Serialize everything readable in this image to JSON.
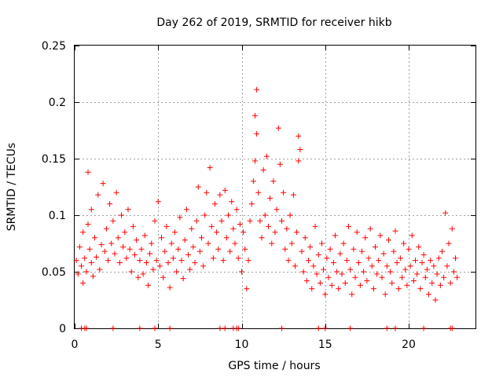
{
  "chart_data": {
    "type": "scatter",
    "title": "Day 262 of 2019, SRMTID for receiver hikb",
    "xlabel": "GPS time / hours",
    "ylabel": "SRMTID / TECUs",
    "xlim": [
      0,
      24
    ],
    "ylim": [
      0,
      0.25
    ],
    "xticks": [
      0,
      5,
      10,
      15,
      20
    ],
    "xtick_labels": [
      "0",
      "5",
      "10",
      "15",
      "20"
    ],
    "yticks": [
      0,
      0.05,
      0.1,
      0.15,
      0.2,
      0.25
    ],
    "ytick_labels": [
      "0",
      "0.05",
      "0.1",
      "0.15",
      "0.2",
      "0.25"
    ],
    "grid": true,
    "marker": "+",
    "color": "#ff0000",
    "series": [
      {
        "points": [
          [
            0.1,
            0.06
          ],
          [
            0.2,
            0.048
          ],
          [
            0.3,
            0.072
          ],
          [
            0.4,
            0.055
          ],
          [
            0.5,
            0.04
          ],
          [
            0.5,
            0.085
          ],
          [
            0.6,
            0.062
          ],
          [
            0.7,
            0.05
          ],
          [
            0.8,
            0.092
          ],
          [
            0.8,
            0.138
          ],
          [
            0.9,
            0.07
          ],
          [
            1.0,
            0.058
          ],
          [
            1.0,
            0.105
          ],
          [
            1.1,
            0.046
          ],
          [
            1.2,
            0.08
          ],
          [
            1.3,
            0.063
          ],
          [
            1.4,
            0.118
          ],
          [
            1.5,
            0.052
          ],
          [
            1.6,
            0.074
          ],
          [
            1.7,
            0.128
          ],
          [
            1.8,
            0.068
          ],
          [
            1.9,
            0.088
          ],
          [
            2.0,
            0.06
          ],
          [
            2.1,
            0.11
          ],
          [
            2.2,
            0.075
          ],
          [
            2.3,
            0.095
          ],
          [
            2.4,
            0.066
          ],
          [
            2.5,
            0.12
          ],
          [
            2.6,
            0.08
          ],
          [
            2.7,
            0.058
          ],
          [
            2.8,
            0.1
          ],
          [
            2.9,
            0.072
          ],
          [
            3.0,
            0.085
          ],
          [
            3.1,
            0.062
          ],
          [
            3.2,
            0.105
          ],
          [
            3.3,
            0.07
          ],
          [
            3.4,
            0.05
          ],
          [
            3.5,
            0.09
          ],
          [
            3.6,
            0.065
          ],
          [
            3.7,
            0.078
          ],
          [
            3.8,
            0.045
          ],
          [
            3.9,
            0.06
          ],
          [
            4.0,
            0.07
          ],
          [
            4.1,
            0.048
          ],
          [
            4.2,
            0.082
          ],
          [
            4.3,
            0.058
          ],
          [
            4.4,
            0.038
          ],
          [
            4.5,
            0.066
          ],
          [
            4.6,
            0.075
          ],
          [
            4.7,
            0.052
          ],
          [
            4.8,
            0.095
          ],
          [
            4.9,
            0.06
          ],
          [
            5.0,
            0.112
          ],
          [
            5.1,
            0.055
          ],
          [
            5.2,
            0.08
          ],
          [
            5.3,
            0.045
          ],
          [
            5.4,
            0.068
          ],
          [
            5.5,
            0.09
          ],
          [
            5.6,
            0.058
          ],
          [
            5.7,
            0.036
          ],
          [
            5.8,
            0.075
          ],
          [
            5.9,
            0.062
          ],
          [
            6.0,
            0.085
          ],
          [
            6.1,
            0.05
          ],
          [
            6.2,
            0.07
          ],
          [
            6.3,
            0.098
          ],
          [
            6.4,
            0.06
          ],
          [
            6.5,
            0.044
          ],
          [
            6.6,
            0.078
          ],
          [
            6.7,
            0.105
          ],
          [
            6.8,
            0.065
          ],
          [
            6.9,
            0.052
          ],
          [
            7.0,
            0.088
          ],
          [
            7.1,
            0.072
          ],
          [
            7.2,
            0.058
          ],
          [
            7.3,
            0.095
          ],
          [
            7.4,
            0.125
          ],
          [
            7.5,
            0.068
          ],
          [
            7.6,
            0.08
          ],
          [
            7.7,
            0.055
          ],
          [
            7.8,
            0.1
          ],
          [
            7.9,
            0.12
          ],
          [
            8.0,
            0.075
          ],
          [
            8.1,
            0.142
          ],
          [
            8.2,
            0.09
          ],
          [
            8.3,
            0.062
          ],
          [
            8.4,
            0.11
          ],
          [
            8.5,
            0.085
          ],
          [
            8.6,
            0.07
          ],
          [
            8.7,
            0.118
          ],
          [
            8.8,
            0.095
          ],
          [
            8.9,
            0.06
          ],
          [
            9.0,
            0.122
          ],
          [
            9.1,
            0.08
          ],
          [
            9.2,
            0.1
          ],
          [
            9.3,
            0.068
          ],
          [
            9.4,
            0.112
          ],
          [
            9.5,
            0.088
          ],
          [
            9.6,
            0.075
          ],
          [
            9.7,
            0.105
          ],
          [
            9.8,
            0.062
          ],
          [
            9.9,
            0.092
          ],
          [
            10.0,
            0.05
          ],
          [
            10.1,
            0.085
          ],
          [
            10.2,
            0.07
          ],
          [
            10.3,
            0.035
          ],
          [
            10.4,
            0.06
          ],
          [
            10.5,
            0.095
          ],
          [
            10.6,
            0.11
          ],
          [
            10.7,
            0.13
          ],
          [
            10.8,
            0.148
          ],
          [
            10.8,
            0.188
          ],
          [
            10.9,
            0.172
          ],
          [
            10.9,
            0.211
          ],
          [
            11.0,
            0.12
          ],
          [
            11.1,
            0.095
          ],
          [
            11.2,
            0.08
          ],
          [
            11.3,
            0.14
          ],
          [
            11.4,
            0.1
          ],
          [
            11.5,
            0.152
          ],
          [
            11.6,
            0.09
          ],
          [
            11.7,
            0.115
          ],
          [
            11.8,
            0.075
          ],
          [
            11.9,
            0.13
          ],
          [
            12.0,
            0.085
          ],
          [
            12.1,
            0.105
          ],
          [
            12.2,
            0.177
          ],
          [
            12.3,
            0.145
          ],
          [
            12.4,
            0.095
          ],
          [
            12.5,
            0.12
          ],
          [
            12.6,
            0.07
          ],
          [
            12.7,
            0.088
          ],
          [
            12.8,
            0.06
          ],
          [
            12.9,
            0.1
          ],
          [
            13.0,
            0.075
          ],
          [
            13.1,
            0.118
          ],
          [
            13.2,
            0.055
          ],
          [
            13.3,
            0.085
          ],
          [
            13.4,
            0.148
          ],
          [
            13.4,
            0.17
          ],
          [
            13.5,
            0.158
          ],
          [
            13.6,
            0.068
          ],
          [
            13.7,
            0.05
          ],
          [
            13.8,
            0.08
          ],
          [
            13.9,
            0.042
          ],
          [
            14.0,
            0.06
          ],
          [
            14.1,
            0.072
          ],
          [
            14.2,
            0.035
          ],
          [
            14.3,
            0.055
          ],
          [
            14.4,
            0.09
          ],
          [
            14.5,
            0.048
          ],
          [
            14.6,
            0.065
          ],
          [
            14.7,
            0.04
          ],
          [
            14.8,
            0.075
          ],
          [
            14.9,
            0.052
          ],
          [
            15.0,
            0.03
          ],
          [
            15.1,
            0.062
          ],
          [
            15.2,
            0.045
          ],
          [
            15.3,
            0.07
          ],
          [
            15.4,
            0.038
          ],
          [
            15.5,
            0.058
          ],
          [
            15.6,
            0.082
          ],
          [
            15.7,
            0.05
          ],
          [
            15.8,
            0.035
          ],
          [
            15.9,
            0.066
          ],
          [
            16.0,
            0.048
          ],
          [
            16.1,
            0.075
          ],
          [
            16.2,
            0.04
          ],
          [
            16.3,
            0.06
          ],
          [
            16.4,
            0.09
          ],
          [
            16.5,
            0.052
          ],
          [
            16.6,
            0.03
          ],
          [
            16.7,
            0.07
          ],
          [
            16.8,
            0.045
          ],
          [
            16.9,
            0.085
          ],
          [
            17.0,
            0.058
          ],
          [
            17.1,
            0.038
          ],
          [
            17.2,
            0.068
          ],
          [
            17.3,
            0.05
          ],
          [
            17.4,
            0.08
          ],
          [
            17.5,
            0.042
          ],
          [
            17.6,
            0.062
          ],
          [
            17.7,
            0.088
          ],
          [
            17.8,
            0.055
          ],
          [
            17.9,
            0.035
          ],
          [
            18.0,
            0.072
          ],
          [
            18.1,
            0.048
          ],
          [
            18.2,
            0.06
          ],
          [
            18.3,
            0.082
          ],
          [
            18.4,
            0.045
          ],
          [
            18.5,
            0.066
          ],
          [
            18.6,
            0.03
          ],
          [
            18.7,
            0.055
          ],
          [
            18.8,
            0.078
          ],
          [
            18.9,
            0.05
          ],
          [
            19.0,
            0.04
          ],
          [
            19.1,
            0.068
          ],
          [
            19.2,
            0.086
          ],
          [
            19.3,
            0.058
          ],
          [
            19.4,
            0.035
          ],
          [
            19.5,
            0.062
          ],
          [
            19.6,
            0.045
          ],
          [
            19.7,
            0.075
          ],
          [
            19.8,
            0.052
          ],
          [
            19.9,
            0.038
          ],
          [
            20.0,
            0.07
          ],
          [
            20.1,
            0.055
          ],
          [
            20.2,
            0.082
          ],
          [
            20.3,
            0.042
          ],
          [
            20.4,
            0.06
          ],
          [
            20.5,
            0.048
          ],
          [
            20.6,
            0.072
          ],
          [
            20.7,
            0.035
          ],
          [
            20.8,
            0.058
          ],
          [
            20.9,
            0.065
          ],
          [
            21.0,
            0.045
          ],
          [
            21.1,
            0.052
          ],
          [
            21.2,
            0.03
          ],
          [
            21.3,
            0.06
          ],
          [
            21.4,
            0.04
          ],
          [
            21.5,
            0.055
          ],
          [
            21.6,
            0.025
          ],
          [
            21.7,
            0.048
          ],
          [
            21.8,
            0.062
          ],
          [
            21.9,
            0.038
          ],
          [
            22.0,
            0.068
          ],
          [
            22.1,
            0.045
          ],
          [
            22.2,
            0.102
          ],
          [
            22.3,
            0.055
          ],
          [
            22.4,
            0.075
          ],
          [
            22.5,
            0.04
          ],
          [
            22.6,
            0.088
          ],
          [
            22.7,
            0.05
          ],
          [
            22.8,
            0.062
          ],
          [
            22.9,
            0.045
          ]
        ]
      },
      {
        "points": [
          [
            0.4,
            0.0
          ],
          [
            0.6,
            0.0
          ],
          [
            0.7,
            0.0
          ],
          [
            2.3,
            0.0
          ],
          [
            3.9,
            0.0
          ],
          [
            4.8,
            0.0
          ],
          [
            5.7,
            0.0
          ],
          [
            8.7,
            0.0
          ],
          [
            9.0,
            0.0
          ],
          [
            9.5,
            0.0
          ],
          [
            9.7,
            0.0
          ],
          [
            9.8,
            0.0
          ],
          [
            12.4,
            0.0
          ],
          [
            14.6,
            0.0
          ],
          [
            15.0,
            0.0
          ],
          [
            16.5,
            0.0
          ],
          [
            18.7,
            0.0
          ],
          [
            19.2,
            0.0
          ],
          [
            20.9,
            0.0
          ],
          [
            22.5,
            0.0
          ],
          [
            22.6,
            0.0
          ]
        ]
      }
    ]
  }
}
